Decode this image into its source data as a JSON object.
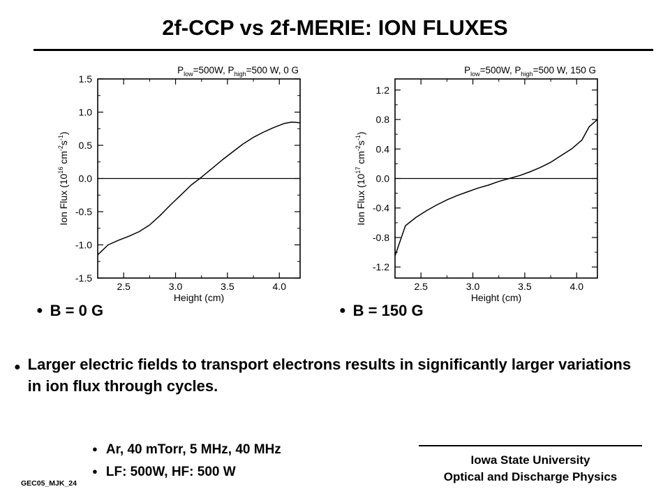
{
  "slide": {
    "title": "2f-CCP vs 2f-MERIE:  ION FLUXES",
    "captions": [
      "B = 0 G",
      "B = 150 G"
    ],
    "main_bullet": "Larger electric fields to transport electrons results in significantly larger variations in ion flux through cycles.",
    "conditions": [
      "Ar, 40 mTorr,  5 MHz, 40 MHz",
      "LF: 500W, HF: 500 W"
    ],
    "footer_code": "GEC05_MJK_24",
    "footer_org": [
      "Iowa State University",
      "Optical and Discharge Physics"
    ],
    "bullet_glyph": "●"
  },
  "chart_data": [
    {
      "type": "line",
      "title_parts": {
        "p": "P",
        "low_sub": "low",
        "mid": "=500W, P",
        "high_sub": "high",
        "tail": "=500 W, 0 G"
      },
      "xlabel": "Height (cm)",
      "ylabel_parts": {
        "base": "Ion Flux (10",
        "exp1": "16",
        "mid": " cm",
        "exp2": "-2",
        "s": "s",
        "exp3": "-1",
        "close": ")"
      },
      "xlim": [
        2.25,
        4.2
      ],
      "ylim": [
        -1.5,
        1.5
      ],
      "xticks": [
        2.5,
        3.0,
        3.5,
        4.0
      ],
      "xtick_labels": [
        "2.5",
        "3.0",
        "3.5",
        "4.0"
      ],
      "yticks": [
        -1.5,
        -1.0,
        -0.5,
        0.0,
        0.5,
        1.0,
        1.5
      ],
      "ytick_labels": [
        "-1.5",
        "-1.0",
        "-0.5",
        "0.0",
        "0.5",
        "1.0",
        "1.5"
      ],
      "zero_line": true,
      "color": "#000000",
      "series": [
        {
          "x": [
            2.25,
            2.35,
            2.45,
            2.55,
            2.65,
            2.75,
            2.85,
            2.95,
            3.05,
            3.15,
            3.25,
            3.35,
            3.45,
            3.55,
            3.65,
            3.75,
            3.85,
            3.95,
            4.05,
            4.12,
            4.2
          ],
          "y": [
            -1.15,
            -1.0,
            -0.93,
            -0.87,
            -0.8,
            -0.7,
            -0.56,
            -0.4,
            -0.25,
            -0.1,
            0.02,
            0.15,
            0.28,
            0.4,
            0.52,
            0.62,
            0.7,
            0.77,
            0.83,
            0.85,
            0.84
          ]
        }
      ]
    },
    {
      "type": "line",
      "title_parts": {
        "p": "P",
        "low_sub": "low",
        "mid": "=500W, P",
        "high_sub": "high",
        "tail": "=500 W, 150 G"
      },
      "xlabel": "Height (cm)",
      "ylabel_parts": {
        "base": "Ion Flux (10",
        "exp1": "17",
        "mid": " cm",
        "exp2": "-2",
        "s": "s",
        "exp3": "-1",
        "close": ")"
      },
      "xlim": [
        2.25,
        4.2
      ],
      "ylim": [
        -1.35,
        1.35
      ],
      "xticks": [
        2.5,
        3.0,
        3.5,
        4.0
      ],
      "xtick_labels": [
        "2.5",
        "3.0",
        "3.5",
        "4.0"
      ],
      "yticks": [
        -1.2,
        -0.8,
        -0.4,
        0.0,
        0.4,
        0.8,
        1.2
      ],
      "ytick_labels": [
        "-1.2",
        "-0.8",
        "-0.4",
        "0.0",
        "0.4",
        "0.8",
        "1.2"
      ],
      "zero_line": true,
      "color": "#000000",
      "series": [
        {
          "x": [
            2.25,
            2.35,
            2.45,
            2.55,
            2.65,
            2.75,
            2.85,
            2.95,
            3.05,
            3.15,
            3.25,
            3.35,
            3.45,
            3.55,
            3.65,
            3.75,
            3.85,
            3.95,
            4.05,
            4.12,
            4.2
          ],
          "y": [
            -1.05,
            -0.64,
            -0.53,
            -0.44,
            -0.36,
            -0.29,
            -0.23,
            -0.18,
            -0.13,
            -0.09,
            -0.04,
            0.0,
            0.04,
            0.09,
            0.15,
            0.22,
            0.31,
            0.4,
            0.52,
            0.7,
            0.8
          ]
        }
      ]
    }
  ]
}
